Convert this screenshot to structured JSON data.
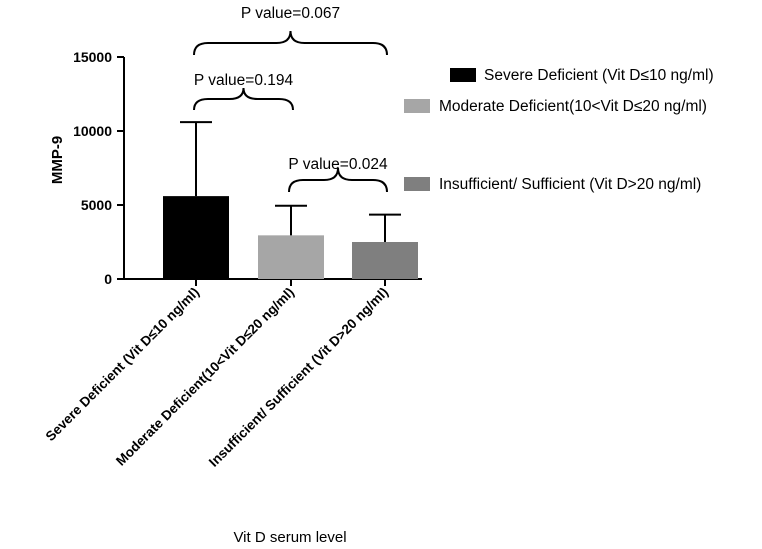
{
  "chart_data": {
    "type": "bar",
    "categories": [
      "Severe Deficient (Vit D≤10 ng/ml)",
      "Moderate Deficient(10<Vit D≤20 ng/ml)",
      "Insufficient/ Sufficient (Vit D>20 ng/ml)"
    ],
    "series": [
      {
        "name": "Severe Deficient (Vit D≤10 ng/ml)",
        "category_index": 0,
        "value": 5600,
        "error_upper": 10600,
        "color": "#000000"
      },
      {
        "name": "Moderate Deficient(10<Vit D≤20 ng/ml)",
        "category_index": 1,
        "value": 2950,
        "error_upper": 4950,
        "color": "#a6a6a6"
      },
      {
        "name": "Insufficient/ Sufficient (Vit D>20 ng/ml)",
        "category_index": 2,
        "value": 2500,
        "error_upper": 4350,
        "color": "#7f7f7f"
      }
    ],
    "title": "",
    "xlabel": "Vit D serum level",
    "ylabel": "MMP-9",
    "ylim": [
      0,
      15000
    ],
    "yticks": [
      0,
      5000,
      10000,
      15000
    ],
    "ytick_labels": [
      "0",
      "5000",
      "10000",
      "15000"
    ],
    "grid": false,
    "legend_position": "right",
    "annotations": [
      {
        "text": "P value=0.067",
        "from_category": 0,
        "to_category": 2,
        "level": 16000
      },
      {
        "text": "P value=0.194",
        "from_category": 0,
        "to_category": 1,
        "level": 12600
      },
      {
        "text": "P value=0.024",
        "from_category": 1,
        "to_category": 2,
        "level": 6600
      }
    ]
  }
}
